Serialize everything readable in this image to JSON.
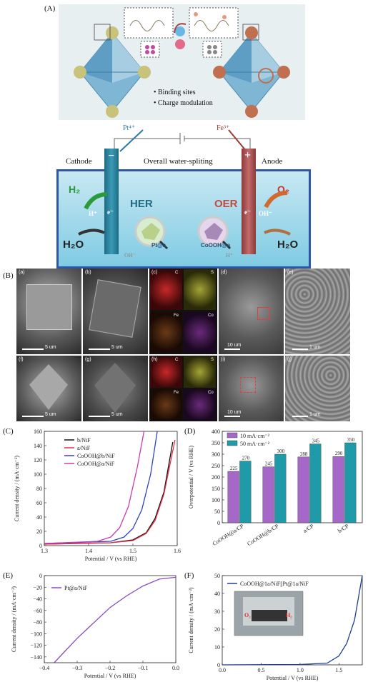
{
  "panelA": {
    "label": "(A)",
    "bullets": [
      "Binding sites",
      "Charge modulation"
    ],
    "ions": {
      "pt": "Pt⁴⁺",
      "fe": "Fe³⁺",
      "pt_small": "Pt⁴⁺",
      "fe_small": "Fe³⁺"
    },
    "cell": {
      "cathode": "Cathode",
      "anode": "Anode",
      "title": "Overall water-spliting",
      "her": "HER",
      "oer": "OER",
      "h2": "H₂",
      "o2": "O₂",
      "h2o_left": "H₂O",
      "h2o_right": "H₂O",
      "hplus": "H⁺",
      "eminus_l": "e⁻",
      "eminus_r": "e⁻",
      "ohminus": "OH⁻",
      "oh_bottom": "OH⁻",
      "h_bottom": "H⁺",
      "pt_label": "Pt@a",
      "co_label": "CoOOH@a",
      "minus": "−",
      "plus": "+"
    }
  },
  "panelB": {
    "label": "(B)",
    "top": [
      {
        "id": "(a)",
        "scale": "5 um"
      },
      {
        "id": "(b)",
        "scale": "5 um"
      },
      {
        "id": "(c)",
        "eds": [
          "C",
          "S",
          "Fe",
          "Co"
        ]
      },
      {
        "id": "(d)",
        "scale": "10 um"
      },
      {
        "id": "(e)",
        "scale": "1 um"
      }
    ],
    "bottom": [
      {
        "id": "(f)",
        "scale": "5 um"
      },
      {
        "id": "(g)",
        "scale": "5 um"
      },
      {
        "id": "(h)",
        "eds": [
          "C",
          "S",
          "Fe",
          "Co"
        ]
      },
      {
        "id": "(i)",
        "scale": "10 um"
      },
      {
        "id": "(j)",
        "scale": "1 um"
      }
    ]
  },
  "chart_data": [
    {
      "panel": "(C)",
      "type": "line",
      "xlabel": "Potential / V (vs RHE)",
      "ylabel": "Current density / (mA·cm⁻²)",
      "xlim": [
        1.3,
        1.6
      ],
      "ylim": [
        0,
        160
      ],
      "xticks": [
        "1.3",
        "1.4",
        "1.5",
        "1.6"
      ],
      "yticks": [
        "0",
        "20",
        "40",
        "60",
        "80",
        "100",
        "120",
        "140",
        "160"
      ],
      "legend_position": "top-left",
      "series": [
        {
          "name": "b/NiF",
          "color": "#111111",
          "points": [
            [
              1.3,
              2
            ],
            [
              1.45,
              4
            ],
            [
              1.5,
              8
            ],
            [
              1.53,
              18
            ],
            [
              1.55,
              38
            ],
            [
              1.57,
              75
            ],
            [
              1.59,
              145
            ]
          ]
        },
        {
          "name": "a/NiF",
          "color": "#e0304a",
          "points": [
            [
              1.3,
              2
            ],
            [
              1.45,
              4
            ],
            [
              1.5,
              7
            ],
            [
              1.53,
              17
            ],
            [
              1.55,
              35
            ],
            [
              1.57,
              72
            ],
            [
              1.595,
              148
            ]
          ]
        },
        {
          "name": "CoOOH@b/NiF",
          "color": "#2f43b8",
          "points": [
            [
              1.3,
              3
            ],
            [
              1.45,
              6
            ],
            [
              1.48,
              12
            ],
            [
              1.5,
              24
            ],
            [
              1.52,
              50
            ],
            [
              1.54,
              100
            ],
            [
              1.555,
              160
            ]
          ]
        },
        {
          "name": "CoOOH@a/NiF",
          "color": "#c83bb4",
          "points": [
            [
              1.3,
              3
            ],
            [
              1.42,
              6
            ],
            [
              1.45,
              12
            ],
            [
              1.47,
              25
            ],
            [
              1.49,
              55
            ],
            [
              1.51,
              110
            ],
            [
              1.525,
              160
            ]
          ]
        }
      ]
    },
    {
      "panel": "(D)",
      "type": "bar",
      "ylabel": "Overpotential / V (vs RHE)",
      "ylim": [
        0,
        400
      ],
      "yticks": [
        "0",
        "50",
        "100",
        "150",
        "200",
        "250",
        "300",
        "350",
        "400"
      ],
      "categories": [
        "CoOOH@a/CP",
        "CoOOH@b/CP",
        "a/CP",
        "b/CP"
      ],
      "legend_position": "top-left",
      "series": [
        {
          "name": "10 mA·cm⁻²",
          "color": "#a668c8",
          "values": [
            225,
            245,
            288,
            290
          ]
        },
        {
          "name": "50 mA·cm⁻²",
          "color": "#1e9aa8",
          "values": [
            270,
            300,
            345,
            350
          ]
        }
      ]
    },
    {
      "panel": "(E)",
      "type": "line",
      "xlabel": "Potential / V (vs RHE)",
      "ylabel": "Current density / (mA·cm⁻²)",
      "xlim": [
        -0.4,
        0.0
      ],
      "ylim": [
        -150,
        0
      ],
      "xticks": [
        "−0.4",
        "−0.3",
        "−0.2",
        "−0.1",
        "0.0"
      ],
      "yticks": [
        "0",
        "−20",
        "−40",
        "−60",
        "−80",
        "−100",
        "−120",
        "−140"
      ],
      "legend_position": "top-left",
      "series": [
        {
          "name": "Pt@a/NiF",
          "color": "#8a4ac0",
          "points": [
            [
              -0.37,
              -150
            ],
            [
              -0.3,
              -108
            ],
            [
              -0.2,
              -55
            ],
            [
              -0.15,
              -35
            ],
            [
              -0.1,
              -18
            ],
            [
              -0.05,
              -6
            ],
            [
              0,
              -3
            ]
          ]
        }
      ]
    },
    {
      "panel": "(F)",
      "type": "line",
      "xlabel": "Potential / V (vs RHE)",
      "ylabel": "Current density / (mA·cm⁻²)",
      "xlim": [
        0.0,
        1.8
      ],
      "ylim": [
        0,
        50
      ],
      "xticks": [
        "0.0",
        "0.5",
        "1.0",
        "1.5"
      ],
      "yticks": [
        "0",
        "10",
        "20",
        "30",
        "40",
        "50"
      ],
      "legend_position": "top-left",
      "inset_labels": {
        "o2": "O₂",
        "h2": "H₂"
      },
      "series": [
        {
          "name": "CoOOH@1a/NiF||Pt@1a/NiF",
          "color": "#1f3f8f",
          "points": [
            [
              0.0,
              0
            ],
            [
              1.0,
              0.2
            ],
            [
              1.35,
              1
            ],
            [
              1.5,
              5
            ],
            [
              1.6,
              12
            ],
            [
              1.7,
              25
            ],
            [
              1.78,
              45
            ],
            [
              1.8,
              50
            ]
          ]
        }
      ]
    }
  ]
}
